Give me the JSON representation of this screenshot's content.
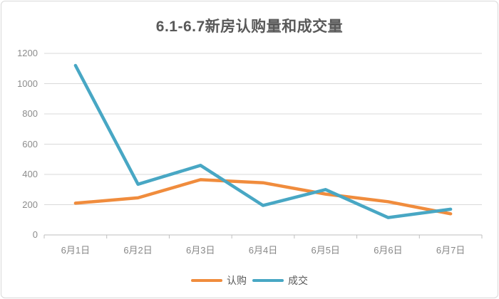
{
  "chart_title": "6.1-6.7新房认购量和成交量",
  "colors": {
    "title_text": "#595959",
    "tick_text": "#8C8C8C",
    "legend_text": "#595959",
    "grid": "#D9D9D9",
    "axis": "#BFBFBF",
    "frame_border": "#D9D9D9",
    "series_rengou": "#F08C3D",
    "series_chengjiao": "#48A7C4"
  },
  "chart_data": {
    "type": "line",
    "title": "6.1-6.7新房认购量和成交量",
    "categories": [
      "6月1日",
      "6月2日",
      "6月3日",
      "6月4日",
      "6月5日",
      "6月6日",
      "6月7日"
    ],
    "series": [
      {
        "id": "rengou",
        "name": "认购",
        "color": "#F08C3D",
        "values": [
          210,
          245,
          365,
          345,
          270,
          220,
          140
        ]
      },
      {
        "id": "chengjiao",
        "name": "成交",
        "color": "#48A7C4",
        "values": [
          1120,
          335,
          460,
          195,
          300,
          115,
          170
        ]
      }
    ],
    "xlabel": "",
    "ylabel": "",
    "ylim": [
      0,
      1200
    ],
    "yticks": [
      0,
      200,
      400,
      600,
      800,
      1000,
      1200
    ],
    "grid": true,
    "legend_position": "bottom"
  }
}
